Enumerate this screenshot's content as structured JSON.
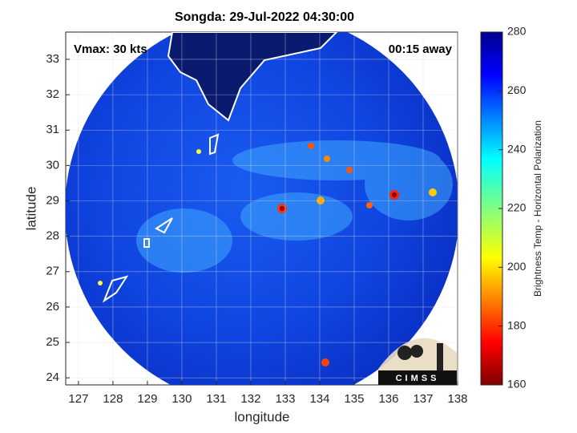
{
  "chart_data": {
    "type": "image",
    "title": "Songda: 29-Jul-2022 04:30:00",
    "annotations": [
      "Vmax: 30 kts",
      "00:15 away"
    ],
    "x_label": "longitude",
    "y_label": "latitude",
    "xlim": [
      126.63,
      138
    ],
    "ylim": [
      23.8,
      33.77
    ],
    "xticks": [
      127,
      128,
      129,
      130,
      131,
      132,
      133,
      134,
      135,
      136,
      137,
      138
    ],
    "yticks": [
      24,
      25,
      26,
      27,
      28,
      29,
      30,
      31,
      32,
      33
    ],
    "grid": true,
    "colorbar": {
      "label": "Brightness Temp - Horizontal Polarization",
      "clim": [
        160,
        280
      ],
      "ticks": [
        160,
        180,
        200,
        220,
        240,
        260,
        280
      ]
    },
    "logo": "CIMSS"
  }
}
